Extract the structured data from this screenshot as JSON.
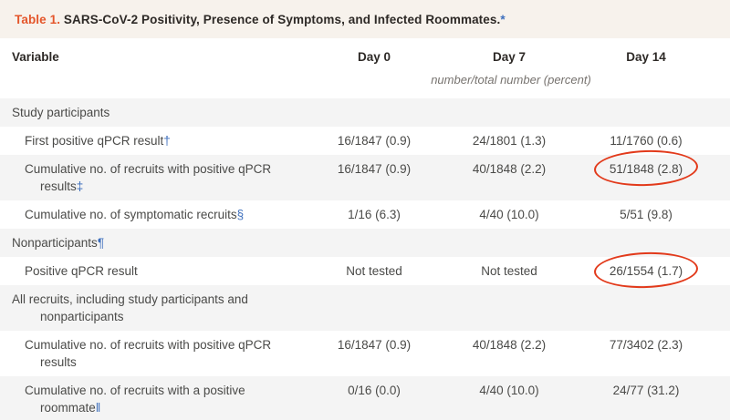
{
  "colors": {
    "accent_orange": "#e4562b",
    "footnote_blue": "#3e6fbd",
    "annotation_red": "#e23a1b",
    "title_bar_bg": "#f7f2ec",
    "stripe_gray": "#f4f4f4"
  },
  "table": {
    "label": "Table 1.",
    "title": " SARS-CoV-2 Positivity, Presence of Symptoms, and Infected Roommates.",
    "title_footnote_marker": "*",
    "columns": [
      "Variable",
      "Day 0",
      "Day 7",
      "Day 14"
    ],
    "units_note": "number/total number (percent)",
    "rows": [
      {
        "type": "section",
        "shade": "gray",
        "label": "Study participants",
        "marker": "",
        "values": [
          "",
          "",
          ""
        ],
        "circled": null
      },
      {
        "type": "item",
        "shade": "white",
        "label": "First positive qPCR result",
        "marker": "†",
        "values": [
          "16/1847 (0.9)",
          "24/1801 (1.3)",
          "11/1760 (0.6)"
        ],
        "circled": null
      },
      {
        "type": "item",
        "shade": "gray",
        "label": "Cumulative no. of recruits with positive qPCR\nresults",
        "marker": "‡",
        "values": [
          "16/1847 (0.9)",
          "40/1848 (2.2)",
          "51/1848 (2.8)"
        ],
        "circled": 2
      },
      {
        "type": "item",
        "shade": "white",
        "label": "Cumulative no. of symptomatic recruits",
        "marker": "§",
        "values": [
          "1/16 (6.3)",
          "4/40 (10.0)",
          "5/51 (9.8)"
        ],
        "circled": null
      },
      {
        "type": "section",
        "shade": "gray",
        "label": "Nonparticipants",
        "marker": "¶",
        "values": [
          "",
          "",
          ""
        ],
        "circled": null
      },
      {
        "type": "item",
        "shade": "white",
        "label": "Positive qPCR result",
        "marker": "",
        "values": [
          "Not tested",
          "Not tested",
          "26/1554 (1.7)"
        ],
        "circled": 2
      },
      {
        "type": "section",
        "shade": "gray",
        "label": "All recruits, including study participants and\nnonparticipants",
        "marker": "",
        "values": [
          "",
          "",
          ""
        ],
        "circled": null
      },
      {
        "type": "item",
        "shade": "white",
        "label": "Cumulative no. of recruits with positive qPCR\nresults",
        "marker": "",
        "values": [
          "16/1847 (0.9)",
          "40/1848 (2.2)",
          "77/3402 (2.3)"
        ],
        "circled": null
      },
      {
        "type": "item",
        "shade": "gray",
        "label": "Cumulative no. of recruits with a positive\nroommate",
        "marker": "‖",
        "values": [
          "0/16 (0.0)",
          "4/40 (10.0)",
          "24/77 (31.2)"
        ],
        "circled": null
      }
    ]
  }
}
